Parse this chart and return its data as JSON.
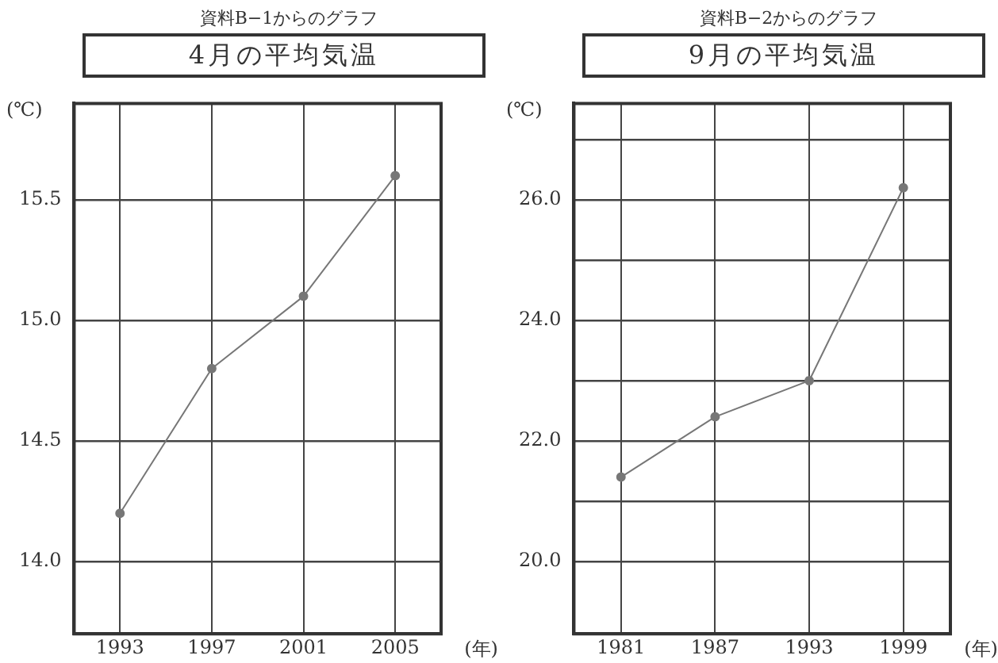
{
  "chart_data": [
    {
      "type": "line",
      "subtitle": "資料B−1からのグラフ",
      "title": "4月の平均気温",
      "ylabel": "(℃)",
      "xlabel": "(年)",
      "categories": [
        "1993",
        "1997",
        "2001",
        "2005"
      ],
      "series": [
        {
          "color": "#777777",
          "values": [
            14.2,
            14.8,
            15.1,
            15.6
          ]
        }
      ],
      "ylim": [
        13.7,
        15.9
      ],
      "yticks": [
        {
          "value": 14,
          "label": "14.0"
        },
        14.5,
        {
          "value": 15,
          "label": "15.0"
        },
        15.5
      ],
      "grid": true,
      "legend": false,
      "marker": "circle",
      "line_style": "solid"
    },
    {
      "type": "line",
      "subtitle": "資料B−2からのグラフ",
      "title": "9月の平均気温",
      "ylabel": "(℃)",
      "xlabel": "(年)",
      "categories": [
        "1981",
        "1987",
        "1993",
        "1999"
      ],
      "series": [
        {
          "color": "#777777",
          "values": [
            21.4,
            22.4,
            23.0,
            26.2
          ]
        }
      ],
      "ylim": [
        18.8,
        27.6
      ],
      "yticks": [
        {
          "value": 20,
          "label": "20.0"
        },
        {
          "value": 21,
          "label": null
        },
        {
          "value": 22,
          "label": "22.0"
        },
        {
          "value": 23,
          "label": null
        },
        {
          "value": 24,
          "label": "24.0"
        },
        {
          "value": 25,
          "label": null
        },
        {
          "value": 26,
          "label": "26.0"
        },
        {
          "value": 27,
          "label": null
        }
      ],
      "grid": true,
      "legend": false,
      "marker": "circle",
      "line_style": "solid"
    }
  ]
}
